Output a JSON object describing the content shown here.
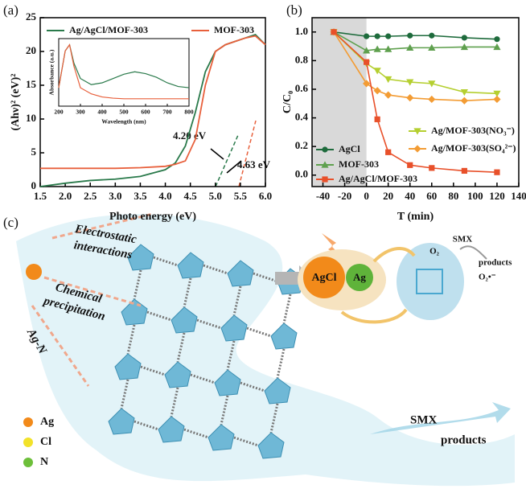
{
  "panel_labels": [
    "(a)",
    "(b)",
    "(c)"
  ],
  "chart_data": [
    {
      "type": "line",
      "xlabel": "Photo energy (eV)",
      "ylabel": "(Ahν)² (eV)²",
      "x": [
        1.5,
        2.0,
        2.5,
        3.0,
        3.5,
        4.0,
        4.2,
        4.4,
        4.6,
        4.8,
        5.0,
        5.2,
        5.4,
        5.6,
        5.8,
        6.0
      ],
      "series": [
        {
          "name": "Ag/AgCl/MOF-303",
          "color": "#2a7a4b",
          "values": [
            0,
            0.5,
            0.9,
            1.1,
            1.5,
            2.5,
            3.5,
            6,
            11,
            17,
            20,
            21,
            21.5,
            22,
            22.5,
            21
          ]
        },
        {
          "name": "MOF-303",
          "color": "#e8603c",
          "values": [
            2.7,
            2.7,
            2.7,
            2.7,
            2.8,
            3.0,
            3.3,
            3.8,
            7,
            15,
            20,
            21,
            21.5,
            22,
            22.3,
            21
          ]
        }
      ],
      "annotations": [
        "4.20 eV",
        "4.63 eV"
      ],
      "xlim": [
        1.5,
        6.0
      ],
      "ylim": [
        0,
        25
      ],
      "xticks": [
        1.5,
        {
          "value": 2,
          "label": "2.0"
        },
        2.5,
        {
          "value": 3,
          "label": "3.0"
        },
        3.5,
        {
          "value": 4,
          "label": "4.0"
        },
        4.5,
        {
          "value": 5,
          "label": "5.0"
        },
        5.5,
        {
          "value": 6,
          "label": "6.0"
        }
      ],
      "yticks": [
        0,
        5,
        10,
        15,
        20,
        25
      ]
    },
    {
      "type": "line",
      "xlabel": "Wavelength (nm)",
      "ylabel": "Absorbance (a.u.)",
      "x": [
        200,
        230,
        250,
        270,
        300,
        350,
        400,
        450,
        500,
        550,
        600,
        650,
        700,
        750,
        800
      ],
      "series": [
        {
          "color": "#2a7a4b",
          "values": [
            0.3,
            0.9,
            1.0,
            0.7,
            0.45,
            0.35,
            0.38,
            0.45,
            0.52,
            0.56,
            0.53,
            0.47,
            0.38,
            0.32,
            0.3
          ]
        },
        {
          "color": "#e8603c",
          "values": [
            0.3,
            0.9,
            1.0,
            0.65,
            0.3,
            0.2,
            0.15,
            0.13,
            0.12,
            0.12,
            0.12,
            0.12,
            0.12,
            0.12,
            0.12
          ]
        }
      ],
      "xlim": [
        200,
        800
      ],
      "ylim": [
        0,
        1.1
      ],
      "xticks": [
        200,
        300,
        400,
        500,
        600,
        700,
        800
      ]
    },
    {
      "type": "line",
      "xlabel": "T (min)",
      "ylabel": "C/C₀",
      "x": [
        -30,
        0,
        10,
        20,
        40,
        60,
        90,
        120
      ],
      "shade": [
        -50,
        0
      ],
      "series": [
        {
          "name": "AgCl",
          "color": "#1e6b3c",
          "marker": "circle",
          "values": [
            1.0,
            0.97,
            0.97,
            0.97,
            0.975,
            0.975,
            0.96,
            0.95
          ]
        },
        {
          "name": "MOF-303",
          "color": "#5fa04e",
          "marker": "triangle",
          "values": [
            1.0,
            0.87,
            0.88,
            0.88,
            0.89,
            0.89,
            0.895,
            0.895
          ]
        },
        {
          "name": "Ag/MOF-303(NO₃⁻)",
          "color": "#b5cf30",
          "marker": "triangle-down",
          "values": [
            1.0,
            0.78,
            0.73,
            0.67,
            0.65,
            0.64,
            0.58,
            0.57
          ]
        },
        {
          "name": "Ag/MOF-303(SO₄²⁻)",
          "color": "#f39c34",
          "marker": "diamond",
          "values": [
            1.0,
            0.64,
            0.59,
            0.56,
            0.54,
            0.53,
            0.52,
            0.53
          ]
        },
        {
          "name": "Ag/AgCl/MOF-303",
          "color": "#e8502a",
          "marker": "square",
          "values": [
            1.0,
            0.79,
            0.39,
            0.16,
            0.07,
            0.05,
            0.03,
            0.02
          ]
        }
      ],
      "xlim": [
        -50,
        140
      ],
      "ylim": [
        -0.08,
        1.1
      ],
      "xticks": [
        -40,
        -20,
        0,
        20,
        40,
        60,
        80,
        100,
        120,
        140
      ],
      "yticks": [
        {
          "value": 0,
          "label": "0.0"
        },
        0.2,
        0.4,
        0.6,
        0.8,
        {
          "value": 1,
          "label": "1.0"
        }
      ]
    }
  ],
  "diagram": {
    "electrostatic": [
      "Electrostatic",
      "interactions"
    ],
    "precipitation": [
      "Chemical",
      "precipitation"
    ],
    "ag_n": "Ag-N",
    "legend": [
      "Ag",
      "Cl",
      "N"
    ],
    "agcl": "AgCl",
    "ag": "Ag",
    "o2": "O₂",
    "smx": "SMX",
    "products": "products",
    "superoxide": "O₂•⁻",
    "smx_out": "SMX",
    "products_out": "products"
  }
}
